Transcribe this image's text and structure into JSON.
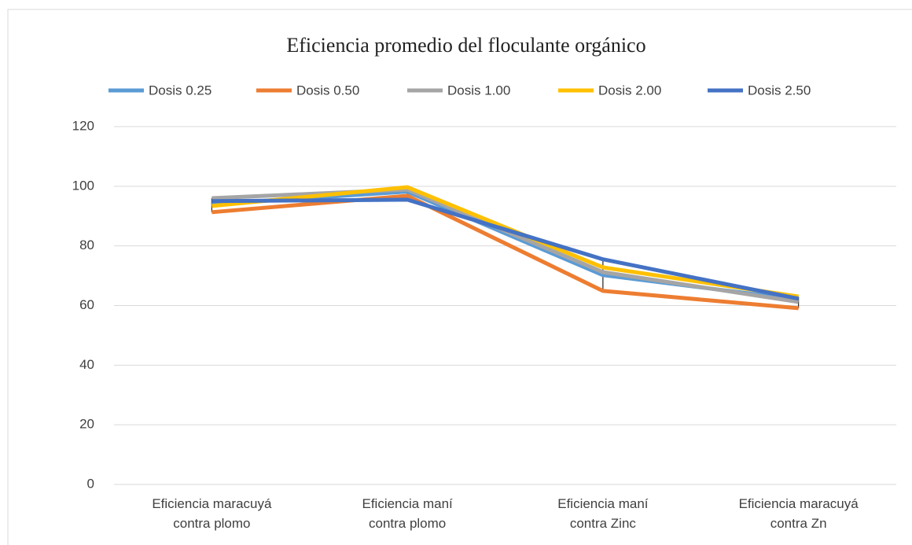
{
  "chart_data": {
    "type": "line",
    "title": "Eficiencia promedio del floculante orgánico",
    "categories": [
      "Eficiencia maracuyá\ncontra plomo",
      "Eficiencia maní\ncontra plomo",
      "Eficiencia maní\ncontra Zinc",
      "Eficiencia maracuyá\ncontra Zn"
    ],
    "series": [
      {
        "name": "Dosis 0.25",
        "color": "#5b9bd5",
        "values": [
          94,
          98.2,
          70.2,
          62
        ]
      },
      {
        "name": "Dosis 0.50",
        "color": "#ed7d31",
        "values": [
          91.3,
          96.8,
          64.9,
          59.1
        ]
      },
      {
        "name": "Dosis 1.00",
        "color": "#a5a5a5",
        "values": [
          96,
          98.9,
          71.2,
          61.2
        ]
      },
      {
        "name": "Dosis 2.00",
        "color": "#ffc000",
        "values": [
          93.4,
          99.7,
          72.8,
          63
        ]
      },
      {
        "name": "Dosis 2.50",
        "color": "#4472c4",
        "values": [
          95,
          95.5,
          75.5,
          62.3
        ]
      }
    ],
    "ylim": [
      0,
      120
    ],
    "yticks": [
      0,
      20,
      40,
      60,
      80,
      100,
      120
    ],
    "grid": true,
    "legend": "top",
    "high_low_lines": true
  }
}
